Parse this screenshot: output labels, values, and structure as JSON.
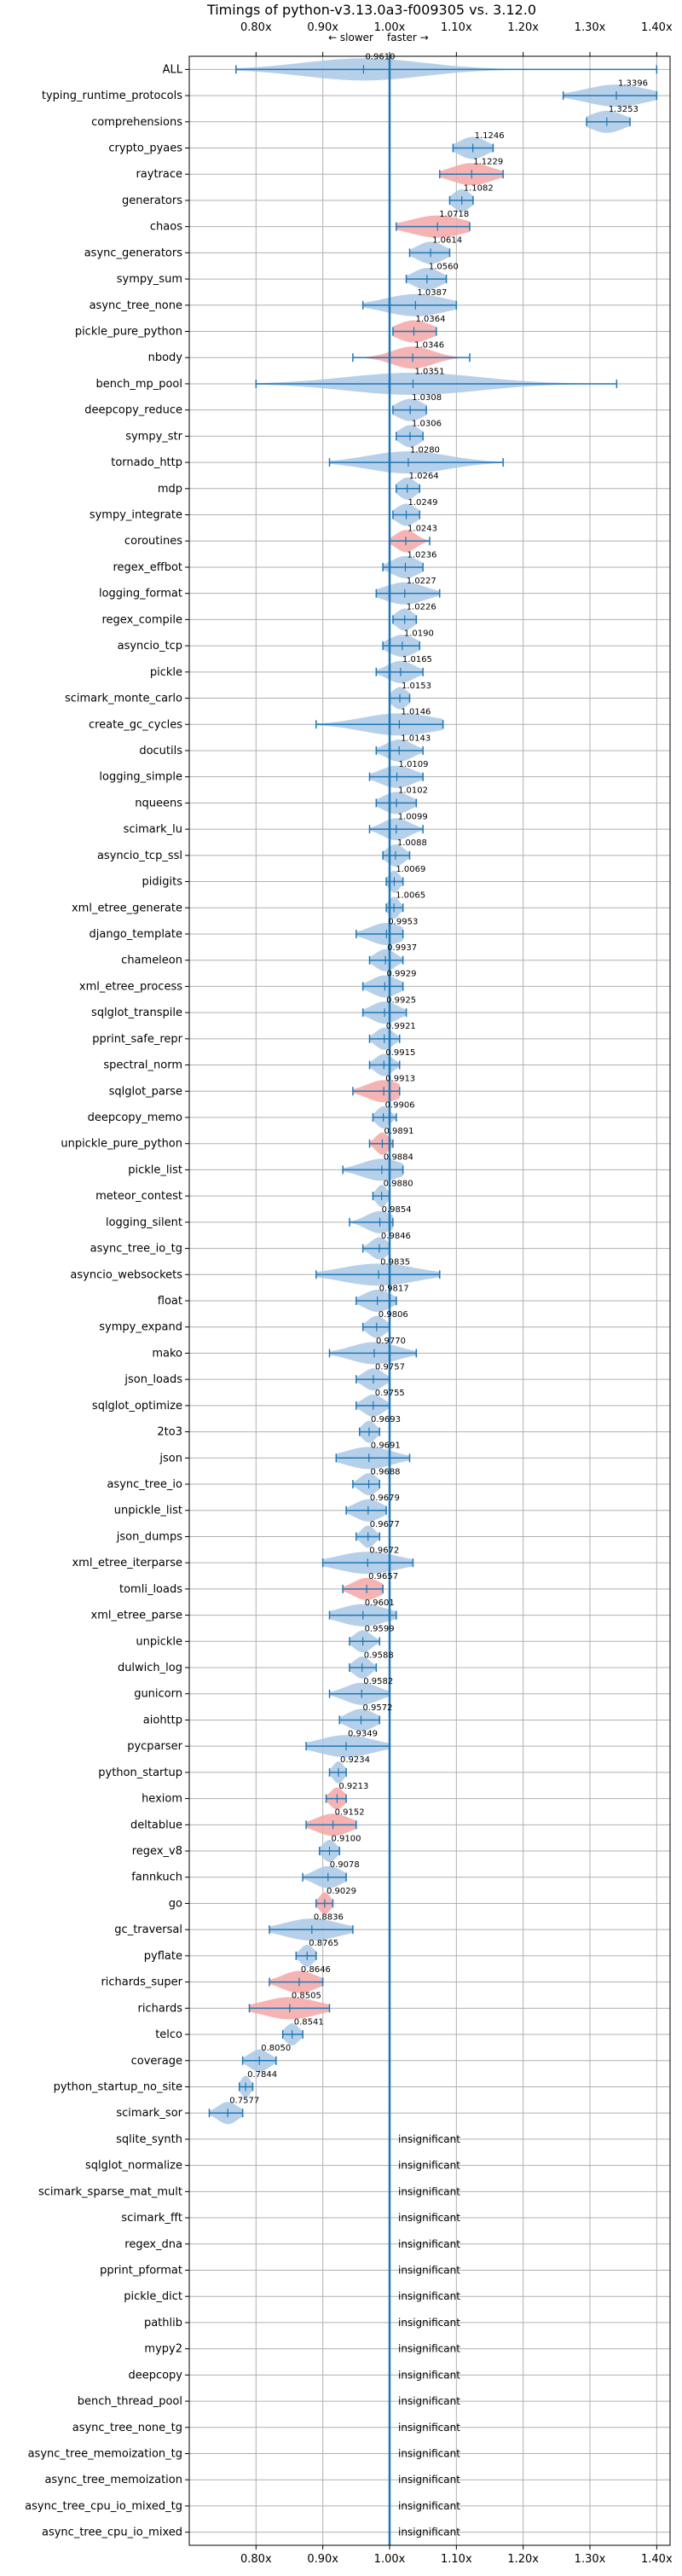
{
  "chart_data": {
    "type": "violin",
    "title": "Timings of python-v3.13.0a3-f009305 vs. 3.12.0",
    "direction_labels": {
      "slower": "← slower",
      "faster": "faster →"
    },
    "xlim": [
      0.7,
      1.42
    ],
    "xticks": [
      0.8,
      0.9,
      1.0,
      1.1,
      1.2,
      1.3,
      1.4
    ],
    "xtick_labels": [
      "0.80x",
      "0.90x",
      "1.00x",
      "1.10x",
      "1.20x",
      "1.30x",
      "1.40x"
    ],
    "reference_line": 1.0,
    "grid": true,
    "insignificant_text": "insignificant",
    "benchmarks": [
      {
        "name": "ALL",
        "value": 0.961,
        "label": "0.9610",
        "lo": 0.77,
        "hi": 1.4,
        "color": "blue",
        "spread": 0.09
      },
      {
        "name": "typing_runtime_protocols",
        "value": 1.3396,
        "label": "1.3396",
        "lo": 1.26,
        "hi": 1.4,
        "color": "blue",
        "spread": 0.045
      },
      {
        "name": "comprehensions",
        "value": 1.3253,
        "label": "1.3253",
        "lo": 1.295,
        "hi": 1.36,
        "color": "blue",
        "spread": 0.025
      },
      {
        "name": "crypto_pyaes",
        "value": 1.1246,
        "label": "1.1246",
        "lo": 1.095,
        "hi": 1.155,
        "color": "blue",
        "spread": 0.02
      },
      {
        "name": "raytrace",
        "value": 1.1229,
        "label": "1.1229",
        "lo": 1.075,
        "hi": 1.17,
        "color": "red",
        "spread": 0.03
      },
      {
        "name": "generators",
        "value": 1.1082,
        "label": "1.1082",
        "lo": 1.09,
        "hi": 1.125,
        "color": "blue",
        "spread": 0.013
      },
      {
        "name": "chaos",
        "value": 1.0718,
        "label": "1.0718",
        "lo": 1.01,
        "hi": 1.12,
        "color": "red",
        "spread": 0.04
      },
      {
        "name": "async_generators",
        "value": 1.0614,
        "label": "1.0614",
        "lo": 1.03,
        "hi": 1.09,
        "color": "blue",
        "spread": 0.02
      },
      {
        "name": "sympy_sum",
        "value": 1.056,
        "label": "1.0560",
        "lo": 1.025,
        "hi": 1.085,
        "color": "blue",
        "spread": 0.02
      },
      {
        "name": "async_tree_none",
        "value": 1.0387,
        "label": "1.0387",
        "lo": 0.96,
        "hi": 1.1,
        "color": "blue",
        "spread": 0.045
      },
      {
        "name": "pickle_pure_python",
        "value": 1.0364,
        "label": "1.0364",
        "lo": 1.005,
        "hi": 1.07,
        "color": "red",
        "spread": 0.025
      },
      {
        "name": "nbody",
        "value": 1.0346,
        "label": "1.0346",
        "lo": 0.945,
        "hi": 1.12,
        "color": "red",
        "spread": 0.03
      },
      {
        "name": "bench_mp_pool",
        "value": 1.0351,
        "label": "1.0351",
        "lo": 0.8,
        "hi": 1.34,
        "color": "blue",
        "spread": 0.1
      },
      {
        "name": "deepcopy_reduce",
        "value": 1.0308,
        "label": "1.0308",
        "lo": 1.005,
        "hi": 1.055,
        "color": "blue",
        "spread": 0.02
      },
      {
        "name": "sympy_str",
        "value": 1.0306,
        "label": "1.0306",
        "lo": 1.01,
        "hi": 1.05,
        "color": "blue",
        "spread": 0.015
      },
      {
        "name": "tornado_http",
        "value": 1.028,
        "label": "1.0280",
        "lo": 0.91,
        "hi": 1.17,
        "color": "blue",
        "spread": 0.06
      },
      {
        "name": "mdp",
        "value": 1.0264,
        "label": "1.0264",
        "lo": 1.01,
        "hi": 1.045,
        "color": "blue",
        "spread": 0.013
      },
      {
        "name": "sympy_integrate",
        "value": 1.0249,
        "label": "1.0249",
        "lo": 1.005,
        "hi": 1.045,
        "color": "blue",
        "spread": 0.015
      },
      {
        "name": "coroutines",
        "value": 1.0243,
        "label": "1.0243",
        "lo": 1.0,
        "hi": 1.06,
        "color": "red",
        "spread": 0.015
      },
      {
        "name": "regex_effbot",
        "value": 1.0236,
        "label": "1.0236",
        "lo": 0.99,
        "hi": 1.05,
        "color": "blue",
        "spread": 0.02
      },
      {
        "name": "logging_format",
        "value": 1.0227,
        "label": "1.0227",
        "lo": 0.98,
        "hi": 1.075,
        "color": "blue",
        "spread": 0.03
      },
      {
        "name": "regex_compile",
        "value": 1.0226,
        "label": "1.0226",
        "lo": 1.005,
        "hi": 1.04,
        "color": "blue",
        "spread": 0.013
      },
      {
        "name": "asyncio_tcp",
        "value": 1.019,
        "label": "1.0190",
        "lo": 0.99,
        "hi": 1.045,
        "color": "blue",
        "spread": 0.02
      },
      {
        "name": "pickle",
        "value": 1.0165,
        "label": "1.0165",
        "lo": 0.98,
        "hi": 1.05,
        "color": "blue",
        "spread": 0.02
      },
      {
        "name": "scimark_monte_carlo",
        "value": 1.0153,
        "label": "1.0153",
        "lo": 1.0,
        "hi": 1.03,
        "color": "blue",
        "spread": 0.012
      },
      {
        "name": "create_gc_cycles",
        "value": 1.0146,
        "label": "1.0146",
        "lo": 0.89,
        "hi": 1.08,
        "color": "blue",
        "spread": 0.055
      },
      {
        "name": "docutils",
        "value": 1.0143,
        "label": "1.0143",
        "lo": 0.98,
        "hi": 1.05,
        "color": "blue",
        "spread": 0.02
      },
      {
        "name": "logging_simple",
        "value": 1.0109,
        "label": "1.0109",
        "lo": 0.97,
        "hi": 1.05,
        "color": "blue",
        "spread": 0.025
      },
      {
        "name": "nqueens",
        "value": 1.0102,
        "label": "1.0102",
        "lo": 0.98,
        "hi": 1.04,
        "color": "blue",
        "spread": 0.02
      },
      {
        "name": "scimark_lu",
        "value": 1.0099,
        "label": "1.0099",
        "lo": 0.97,
        "hi": 1.05,
        "color": "blue",
        "spread": 0.02
      },
      {
        "name": "asyncio_tcp_ssl",
        "value": 1.0088,
        "label": "1.0088",
        "lo": 0.99,
        "hi": 1.03,
        "color": "blue",
        "spread": 0.013
      },
      {
        "name": "pidigits",
        "value": 1.0069,
        "label": "1.0069",
        "lo": 0.995,
        "hi": 1.02,
        "color": "blue",
        "spread": 0.008
      },
      {
        "name": "xml_etree_generate",
        "value": 1.0065,
        "label": "1.0065",
        "lo": 0.995,
        "hi": 1.02,
        "color": "blue",
        "spread": 0.008
      },
      {
        "name": "django_template",
        "value": 0.9953,
        "label": "0.9953",
        "lo": 0.95,
        "hi": 1.02,
        "color": "blue",
        "spread": 0.025
      },
      {
        "name": "chameleon",
        "value": 0.9937,
        "label": "0.9937",
        "lo": 0.97,
        "hi": 1.02,
        "color": "blue",
        "spread": 0.015
      },
      {
        "name": "xml_etree_process",
        "value": 0.9929,
        "label": "0.9929",
        "lo": 0.96,
        "hi": 1.02,
        "color": "blue",
        "spread": 0.02
      },
      {
        "name": "sqlglot_transpile",
        "value": 0.9925,
        "label": "0.9925",
        "lo": 0.96,
        "hi": 1.025,
        "color": "blue",
        "spread": 0.02
      },
      {
        "name": "pprint_safe_repr",
        "value": 0.9921,
        "label": "0.9921",
        "lo": 0.97,
        "hi": 1.015,
        "color": "blue",
        "spread": 0.013
      },
      {
        "name": "spectral_norm",
        "value": 0.9915,
        "label": "0.9915",
        "lo": 0.97,
        "hi": 1.015,
        "color": "blue",
        "spread": 0.013
      },
      {
        "name": "sqlglot_parse",
        "value": 0.9913,
        "label": "0.9913",
        "lo": 0.945,
        "hi": 1.015,
        "color": "red",
        "spread": 0.025
      },
      {
        "name": "deepcopy_memo",
        "value": 0.9906,
        "label": "0.9906",
        "lo": 0.975,
        "hi": 1.01,
        "color": "blue",
        "spread": 0.01
      },
      {
        "name": "unpickle_pure_python",
        "value": 0.9891,
        "label": "0.9891",
        "lo": 0.97,
        "hi": 1.005,
        "color": "red",
        "spread": 0.01
      },
      {
        "name": "pickle_list",
        "value": 0.9884,
        "label": "0.9884",
        "lo": 0.93,
        "hi": 1.02,
        "color": "blue",
        "spread": 0.03
      },
      {
        "name": "meteor_contest",
        "value": 0.988,
        "label": "0.9880",
        "lo": 0.975,
        "hi": 1.0,
        "color": "blue",
        "spread": 0.008
      },
      {
        "name": "logging_silent",
        "value": 0.9854,
        "label": "0.9854",
        "lo": 0.94,
        "hi": 1.005,
        "color": "blue",
        "spread": 0.02
      },
      {
        "name": "async_tree_io_tg",
        "value": 0.9846,
        "label": "0.9846",
        "lo": 0.96,
        "hi": 1.0,
        "color": "blue",
        "spread": 0.013
      },
      {
        "name": "asyncio_websockets",
        "value": 0.9835,
        "label": "0.9835",
        "lo": 0.89,
        "hi": 1.075,
        "color": "blue",
        "spread": 0.055
      },
      {
        "name": "float",
        "value": 0.9817,
        "label": "0.9817",
        "lo": 0.95,
        "hi": 1.01,
        "color": "blue",
        "spread": 0.02
      },
      {
        "name": "sympy_expand",
        "value": 0.9806,
        "label": "0.9806",
        "lo": 0.96,
        "hi": 1.0,
        "color": "blue",
        "spread": 0.013
      },
      {
        "name": "mako",
        "value": 0.977,
        "label": "0.9770",
        "lo": 0.91,
        "hi": 1.04,
        "color": "blue",
        "spread": 0.035
      },
      {
        "name": "json_loads",
        "value": 0.9757,
        "label": "0.9757",
        "lo": 0.95,
        "hi": 1.0,
        "color": "blue",
        "spread": 0.015
      },
      {
        "name": "sqlglot_optimize",
        "value": 0.9755,
        "label": "0.9755",
        "lo": 0.95,
        "hi": 1.0,
        "color": "blue",
        "spread": 0.015
      },
      {
        "name": "2to3",
        "value": 0.9693,
        "label": "0.9693",
        "lo": 0.955,
        "hi": 0.985,
        "color": "blue",
        "spread": 0.01
      },
      {
        "name": "json",
        "value": 0.9691,
        "label": "0.9691",
        "lo": 0.92,
        "hi": 1.03,
        "color": "blue",
        "spread": 0.035
      },
      {
        "name": "async_tree_io",
        "value": 0.9688,
        "label": "0.9688",
        "lo": 0.945,
        "hi": 0.985,
        "color": "blue",
        "spread": 0.013
      },
      {
        "name": "unpickle_list",
        "value": 0.9679,
        "label": "0.9679",
        "lo": 0.935,
        "hi": 0.995,
        "color": "blue",
        "spread": 0.02
      },
      {
        "name": "json_dumps",
        "value": 0.9677,
        "label": "0.9677",
        "lo": 0.95,
        "hi": 0.985,
        "color": "blue",
        "spread": 0.01
      },
      {
        "name": "xml_etree_iterparse",
        "value": 0.9672,
        "label": "0.9672",
        "lo": 0.9,
        "hi": 1.035,
        "color": "blue",
        "spread": 0.045
      },
      {
        "name": "tomli_loads",
        "value": 0.9657,
        "label": "0.9657",
        "lo": 0.93,
        "hi": 0.99,
        "color": "red",
        "spread": 0.02
      },
      {
        "name": "xml_etree_parse",
        "value": 0.9601,
        "label": "0.9601",
        "lo": 0.91,
        "hi": 1.01,
        "color": "blue",
        "spread": 0.035
      },
      {
        "name": "unpickle",
        "value": 0.9599,
        "label": "0.9599",
        "lo": 0.94,
        "hi": 0.985,
        "color": "blue",
        "spread": 0.013
      },
      {
        "name": "dulwich_log",
        "value": 0.9588,
        "label": "0.9588",
        "lo": 0.94,
        "hi": 0.98,
        "color": "blue",
        "spread": 0.012
      },
      {
        "name": "gunicorn",
        "value": 0.9582,
        "label": "0.9582",
        "lo": 0.91,
        "hi": 1.0,
        "color": "blue",
        "spread": 0.025
      },
      {
        "name": "aiohttp",
        "value": 0.9572,
        "label": "0.9572",
        "lo": 0.925,
        "hi": 0.985,
        "color": "blue",
        "spread": 0.02
      },
      {
        "name": "pycparser",
        "value": 0.9349,
        "label": "0.9349",
        "lo": 0.875,
        "hi": 1.0,
        "color": "blue",
        "spread": 0.04
      },
      {
        "name": "python_startup",
        "value": 0.9234,
        "label": "0.9234",
        "lo": 0.91,
        "hi": 0.935,
        "color": "blue",
        "spread": 0.008
      },
      {
        "name": "hexiom",
        "value": 0.9213,
        "label": "0.9213",
        "lo": 0.905,
        "hi": 0.935,
        "color": "red",
        "spread": 0.01
      },
      {
        "name": "deltablue",
        "value": 0.9152,
        "label": "0.9152",
        "lo": 0.875,
        "hi": 0.95,
        "color": "red",
        "spread": 0.025
      },
      {
        "name": "regex_v8",
        "value": 0.91,
        "label": "0.9100",
        "lo": 0.895,
        "hi": 0.925,
        "color": "blue",
        "spread": 0.01
      },
      {
        "name": "fannkuch",
        "value": 0.9078,
        "label": "0.9078",
        "lo": 0.87,
        "hi": 0.935,
        "color": "blue",
        "spread": 0.02
      },
      {
        "name": "go",
        "value": 0.9029,
        "label": "0.9029",
        "lo": 0.89,
        "hi": 0.915,
        "color": "red",
        "spread": 0.008
      },
      {
        "name": "gc_traversal",
        "value": 0.8836,
        "label": "0.8836",
        "lo": 0.82,
        "hi": 0.945,
        "color": "blue",
        "spread": 0.04
      },
      {
        "name": "pyflate",
        "value": 0.8765,
        "label": "0.8765",
        "lo": 0.86,
        "hi": 0.89,
        "color": "blue",
        "spread": 0.01
      },
      {
        "name": "richards_super",
        "value": 0.8646,
        "label": "0.8646",
        "lo": 0.82,
        "hi": 0.9,
        "color": "red",
        "spread": 0.025
      },
      {
        "name": "richards",
        "value": 0.8505,
        "label": "0.8505",
        "lo": 0.79,
        "hi": 0.91,
        "color": "red",
        "spread": 0.04
      },
      {
        "name": "telco",
        "value": 0.8541,
        "label": "0.8541",
        "lo": 0.84,
        "hi": 0.87,
        "color": "blue",
        "spread": 0.01
      },
      {
        "name": "coverage",
        "value": 0.805,
        "label": "0.8050",
        "lo": 0.78,
        "hi": 0.83,
        "color": "blue",
        "spread": 0.015
      },
      {
        "name": "python_startup_no_site",
        "value": 0.7844,
        "label": "0.7844",
        "lo": 0.775,
        "hi": 0.795,
        "color": "blue",
        "spread": 0.007
      },
      {
        "name": "scimark_sor",
        "value": 0.7577,
        "label": "0.7577",
        "lo": 0.73,
        "hi": 0.78,
        "color": "blue",
        "spread": 0.015
      },
      {
        "name": "sqlite_synth",
        "insignificant": true
      },
      {
        "name": "sqlglot_normalize",
        "insignificant": true
      },
      {
        "name": "scimark_sparse_mat_mult",
        "insignificant": true
      },
      {
        "name": "scimark_fft",
        "insignificant": true
      },
      {
        "name": "regex_dna",
        "insignificant": true
      },
      {
        "name": "pprint_pformat",
        "insignificant": true
      },
      {
        "name": "pickle_dict",
        "insignificant": true
      },
      {
        "name": "pathlib",
        "insignificant": true
      },
      {
        "name": "mypy2",
        "insignificant": true
      },
      {
        "name": "deepcopy",
        "insignificant": true
      },
      {
        "name": "bench_thread_pool",
        "insignificant": true
      },
      {
        "name": "async_tree_none_tg",
        "insignificant": true
      },
      {
        "name": "async_tree_memoization_tg",
        "insignificant": true
      },
      {
        "name": "async_tree_memoization",
        "insignificant": true
      },
      {
        "name": "async_tree_cpu_io_mixed_tg",
        "insignificant": true
      },
      {
        "name": "async_tree_cpu_io_mixed",
        "insignificant": true
      }
    ]
  },
  "colors": {
    "blue_fill": "#aac8e6",
    "red_fill": "#f4a6a6",
    "line": "#1f77b4",
    "grid": "#b0b0b0",
    "axis": "#000000"
  }
}
